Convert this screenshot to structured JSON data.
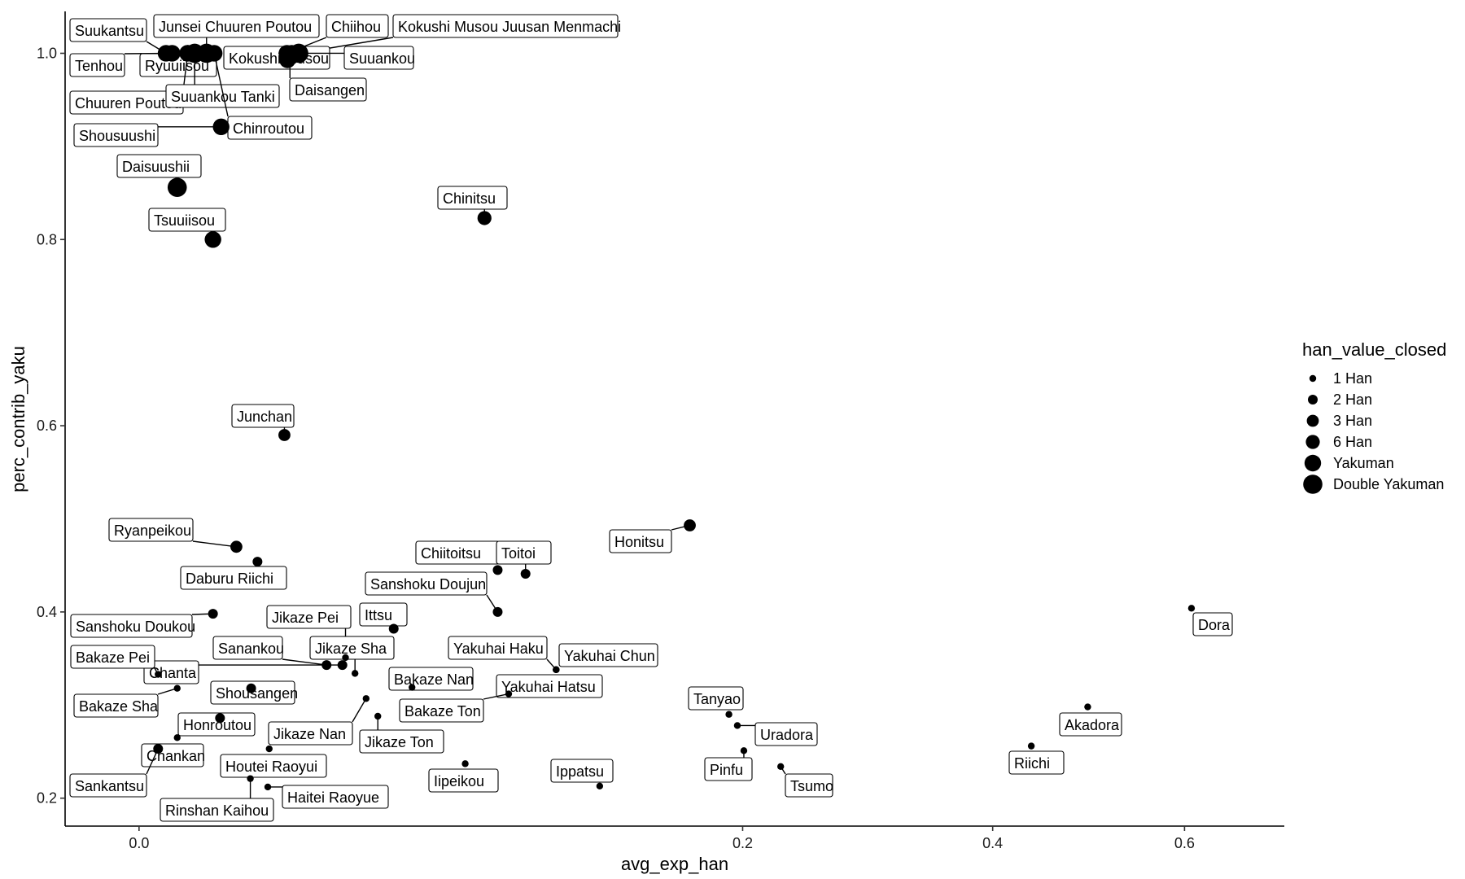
{
  "chart_data": {
    "type": "scatter",
    "xlabel": "avg_exp_han",
    "ylabel": "perc_contrib_yaku",
    "x_scale": "sqrt",
    "xlim": [
      -0.003,
      0.72
    ],
    "ylim": [
      0.17,
      1.045
    ],
    "x_ticks": [
      0.0,
      0.2,
      0.4,
      0.6
    ],
    "x_tick_labels": [
      "0.0",
      "0.2",
      "0.4",
      "0.6"
    ],
    "y_ticks": [
      0.2,
      0.4,
      0.6,
      0.8,
      1.0
    ],
    "y_tick_labels": [
      "0.2",
      "0.4",
      "0.6",
      "0.8",
      "1.0"
    ],
    "grid": false,
    "legend": {
      "title": "han_value_closed",
      "placement": "right",
      "entries": [
        "1 Han",
        "2 Han",
        "3 Han",
        "6 Han",
        "Yakuman",
        "Double Yakuman"
      ]
    },
    "points": [
      {
        "label": "Suukantsu",
        "x": 0.0004,
        "y": 1.0,
        "size": "Yakuman"
      },
      {
        "label": "Junsei Chuuren Poutou",
        "x": 0.0025,
        "y": 1.0,
        "size": "Double Yakuman"
      },
      {
        "label": "Chiihou",
        "x": 0.012,
        "y": 1.0,
        "size": "Yakuman"
      },
      {
        "label": "Kokushi Musou Juusan Menmachi",
        "x": 0.014,
        "y": 1.0,
        "size": "Double Yakuman"
      },
      {
        "label": "Tenhou",
        "x": 0.0006,
        "y": 1.0,
        "size": "Yakuman"
      },
      {
        "label": "Ryuuiisou",
        "x": 0.0013,
        "y": 1.0,
        "size": "Yakuman"
      },
      {
        "label": "Kokushi Musou",
        "x": 0.0121,
        "y": 0.993,
        "size": "Yakuman"
      },
      {
        "label": "Suuankou",
        "x": 0.0128,
        "y": 1.0,
        "size": "Yakuman"
      },
      {
        "label": "Daisangen",
        "x": 0.0125,
        "y": 0.996,
        "size": "Yakuman"
      },
      {
        "label": "Chuuren Poutou",
        "x": 0.0013,
        "y": 1.0,
        "size": "Yakuman"
      },
      {
        "label": "Suuankou Tanki",
        "x": 0.0017,
        "y": 1.0,
        "size": "Double Yakuman"
      },
      {
        "label": "Chinroutou",
        "x": 0.0031,
        "y": 1.0,
        "size": "Yakuman"
      },
      {
        "label": "Shousuushi",
        "x": 0.0037,
        "y": 0.921,
        "size": "Yakuman"
      },
      {
        "label": "Daisuushii",
        "x": 0.0008,
        "y": 0.856,
        "size": "Double Yakuman"
      },
      {
        "label": "Tsuuiisou",
        "x": 0.003,
        "y": 0.8,
        "size": "Yakuman"
      },
      {
        "label": "Chinitsu",
        "x": 0.0655,
        "y": 0.823,
        "size": "6 Han"
      },
      {
        "label": "Junchan",
        "x": 0.0116,
        "y": 0.59,
        "size": "3 Han"
      },
      {
        "label": "Ryanpeikou",
        "x": 0.0052,
        "y": 0.47,
        "size": "3 Han"
      },
      {
        "label": "Daburu Riichi",
        "x": 0.0077,
        "y": 0.454,
        "size": "2 Han"
      },
      {
        "label": "Chiitoitsu",
        "x": 0.0706,
        "y": 0.445,
        "size": "2 Han"
      },
      {
        "label": "Toitoi",
        "x": 0.082,
        "y": 0.441,
        "size": "2 Han"
      },
      {
        "label": "Honitsu",
        "x": 0.1665,
        "y": 0.493,
        "size": "3 Han"
      },
      {
        "label": "Sanshoku Doujun",
        "x": 0.0706,
        "y": 0.4,
        "size": "2 Han"
      },
      {
        "label": "Sanshoku Doukou",
        "x": 0.003,
        "y": 0.398,
        "size": "2 Han"
      },
      {
        "label": "Ittsu",
        "x": 0.0356,
        "y": 0.382,
        "size": "2 Han"
      },
      {
        "label": "Jikaze Pei",
        "x": 0.0234,
        "y": 0.351,
        "size": "1 Han"
      },
      {
        "label": "Sanankou",
        "x": 0.0193,
        "y": 0.343,
        "size": "2 Han"
      },
      {
        "label": "Jikaze Sha",
        "x": 0.0256,
        "y": 0.334,
        "size": "1 Han"
      },
      {
        "label": "Chanta",
        "x": 0.0227,
        "y": 0.343,
        "size": "2 Han"
      },
      {
        "label": "Bakaze Pei",
        "x": 0.0002,
        "y": 0.333,
        "size": "1 Han"
      },
      {
        "label": "Shousangen",
        "x": 0.0069,
        "y": 0.318,
        "size": "2 Han"
      },
      {
        "label": "Bakaze Nan",
        "x": 0.0409,
        "y": 0.319,
        "size": "1 Han"
      },
      {
        "label": "Yakuhai Haku",
        "x": 0.0955,
        "y": 0.338,
        "size": "1 Han"
      },
      {
        "label": "Yakuhai Chun",
        "x": 0.0955,
        "y": 0.338,
        "size": "1 Han"
      },
      {
        "label": "Yakuhai Hatsu",
        "x": 0.0955,
        "y": 0.338,
        "size": "1 Han"
      },
      {
        "label": "Bakaze Sha",
        "x": 0.0008,
        "y": 0.318,
        "size": "1 Han"
      },
      {
        "label": "Bakaze Ton",
        "x": 0.075,
        "y": 0.312,
        "size": "1 Han"
      },
      {
        "label": "Jikaze Nan",
        "x": 0.0283,
        "y": 0.307,
        "size": "1 Han"
      },
      {
        "label": "Jikaze Ton",
        "x": 0.0313,
        "y": 0.288,
        "size": "1 Han"
      },
      {
        "label": "Honroutou",
        "x": 0.0036,
        "y": 0.286,
        "size": "2 Han"
      },
      {
        "label": "Tanyao",
        "x": 0.191,
        "y": 0.29,
        "size": "1 Han"
      },
      {
        "label": "Uradora",
        "x": 0.1965,
        "y": 0.278,
        "size": "1 Han"
      },
      {
        "label": "Pinfu",
        "x": 0.2008,
        "y": 0.251,
        "size": "1 Han"
      },
      {
        "label": "Tsumo",
        "x": 0.226,
        "y": 0.234,
        "size": "1 Han"
      },
      {
        "label": "Akadora",
        "x": 0.494,
        "y": 0.298,
        "size": "1 Han"
      },
      {
        "label": "Riichi",
        "x": 0.437,
        "y": 0.256,
        "size": "1 Han"
      },
      {
        "label": "Dora",
        "x": 0.608,
        "y": 0.404,
        "size": "1 Han"
      },
      {
        "label": "Chankan",
        "x": 0.0008,
        "y": 0.265,
        "size": "1 Han"
      },
      {
        "label": "Sankantsu",
        "x": 0.0002,
        "y": 0.253,
        "size": "2 Han"
      },
      {
        "label": "Houtei Raoyui",
        "x": 0.0093,
        "y": 0.253,
        "size": "1 Han"
      },
      {
        "label": "Ippatsu",
        "x": 0.1165,
        "y": 0.213,
        "size": "1 Han"
      },
      {
        "label": "Iipeikou",
        "x": 0.0584,
        "y": 0.237,
        "size": "1 Han"
      },
      {
        "label": "Rinshan Kaihou",
        "x": 0.0068,
        "y": 0.221,
        "size": "1 Han"
      },
      {
        "label": "Haitei Raoyue",
        "x": 0.0091,
        "y": 0.212,
        "size": "1 Han"
      }
    ]
  }
}
